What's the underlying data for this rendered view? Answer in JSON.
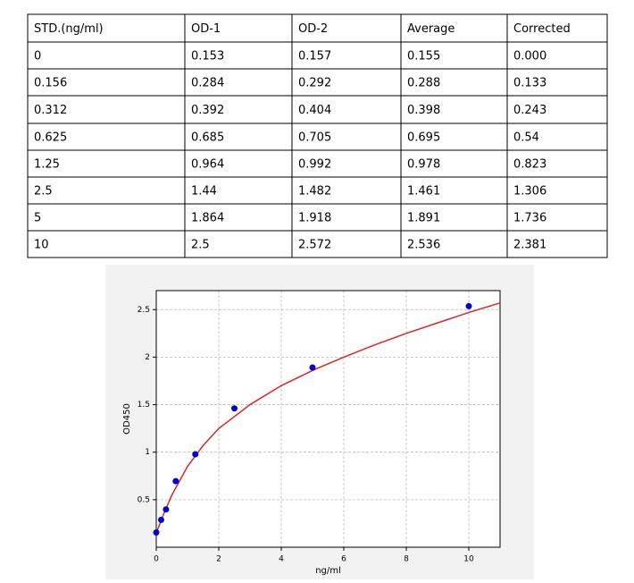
{
  "table": {
    "header": [
      "STD.(ng/ml)",
      "OD-1",
      "OD-2",
      "Average",
      "Corrected"
    ],
    "rows": [
      [
        "0",
        "0.153",
        "0.157",
        "0.155",
        "0.000"
      ],
      [
        "0.156",
        "0.284",
        "0.292",
        "0.288",
        "0.133"
      ],
      [
        "0.312",
        "0.392",
        "0.404",
        "0.398",
        "0.243"
      ],
      [
        "0.625",
        "0.685",
        "0.705",
        "0.695",
        "0.54"
      ],
      [
        "1.25",
        "0.964",
        "0.992",
        "0.978",
        "0.823"
      ],
      [
        "2.5",
        "1.44",
        "1.482",
        "1.461",
        "1.306"
      ],
      [
        "5",
        "1.864",
        "1.918",
        "1.891",
        "1.736"
      ],
      [
        "10",
        "2.5",
        "2.572",
        "2.536",
        "2.381"
      ]
    ]
  },
  "chart_data": {
    "type": "scatter",
    "xlabel": "ng/ml",
    "ylabel": "OD450",
    "xlim": [
      0,
      11
    ],
    "xticks": [
      0,
      2,
      4,
      6,
      8,
      10
    ],
    "ylim": [
      0,
      2.7
    ],
    "yticks": [
      0.5,
      1.0,
      1.5,
      2.0,
      2.5
    ],
    "grid": true,
    "series": [
      {
        "type": "line",
        "color": "#d62728",
        "x": [
          0,
          0.25,
          0.5,
          1,
          1.5,
          2,
          3,
          4,
          5,
          6,
          7,
          8,
          9,
          10,
          11
        ],
        "values": [
          0.15,
          0.36,
          0.55,
          0.85,
          1.07,
          1.25,
          1.5,
          1.7,
          1.86,
          2.0,
          2.13,
          2.25,
          2.36,
          2.47,
          2.57
        ]
      },
      {
        "type": "scatter",
        "color": "#0000cc",
        "x": [
          0,
          0.156,
          0.312,
          0.625,
          1.25,
          2.5,
          5,
          10
        ],
        "values": [
          0.155,
          0.288,
          0.398,
          0.695,
          0.978,
          1.461,
          1.891,
          2.536
        ]
      }
    ]
  }
}
